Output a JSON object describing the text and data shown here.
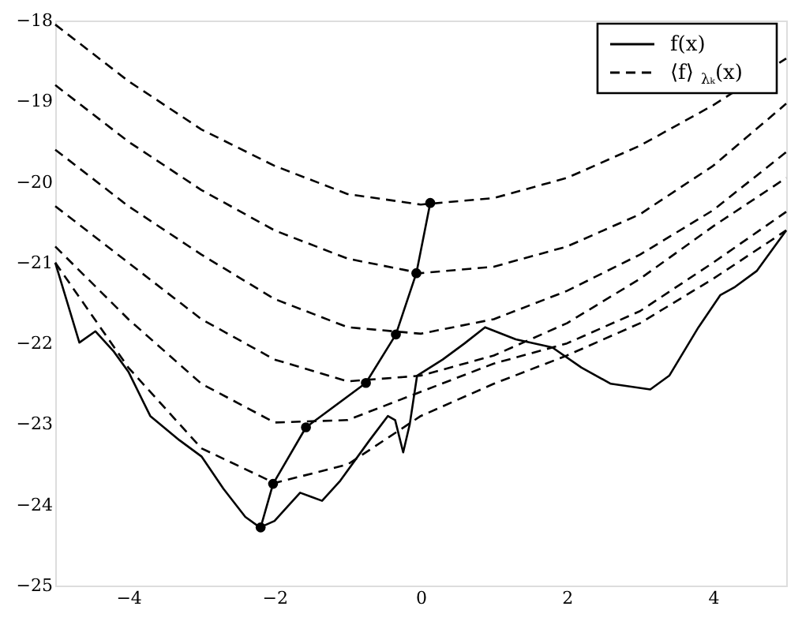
{
  "chart_data": {
    "type": "line",
    "xlim": [
      -5,
      5
    ],
    "ylim": [
      -25,
      -18
    ],
    "xticks": [
      -4,
      -2,
      0,
      2,
      4
    ],
    "yticks": [
      -25,
      -24,
      -23,
      -22,
      -21,
      -20,
      -19,
      -18
    ],
    "grid": false,
    "legend": "top right",
    "series": [
      {
        "name": "f(x)",
        "color": "#000000",
        "line_style": "solid",
        "marker": "none",
        "x": [
          -5.0,
          -4.8,
          -4.67,
          -4.45,
          -4.2,
          -4.0,
          -3.7,
          -3.3,
          -3.0,
          -2.7,
          -2.4,
          -2.2,
          -2.0,
          -1.8,
          -1.65,
          -1.5,
          -1.35,
          -1.1,
          -0.7,
          -0.45,
          -0.35,
          -0.24,
          -0.15,
          -0.05,
          0.3,
          0.6,
          0.88,
          1.3,
          1.8,
          2.2,
          2.6,
          3.14,
          3.4,
          3.8,
          4.1,
          4.3,
          4.6,
          5.0
        ],
        "values": [
          -21.0,
          -21.6,
          -21.99,
          -21.85,
          -22.1,
          -22.35,
          -22.9,
          -23.2,
          -23.4,
          -23.8,
          -24.15,
          -24.28,
          -24.2,
          -24.0,
          -23.85,
          -23.9,
          -23.95,
          -23.7,
          -23.2,
          -22.9,
          -22.95,
          -23.35,
          -23.0,
          -22.4,
          -22.2,
          -22.0,
          -21.8,
          -21.95,
          -22.05,
          -22.3,
          -22.5,
          -22.57,
          -22.4,
          -21.8,
          -21.4,
          -21.3,
          -21.1,
          -20.6
        ]
      },
      {
        "name": "⟨f⟩$_{λₖ}$(x)",
        "color": "#000000",
        "line_style": "dashed",
        "marker": "none",
        "x": [
          -5,
          -4,
          -3,
          -2,
          -1,
          0,
          1,
          2,
          3,
          4,
          5
        ],
        "values": [
          -18.05,
          -18.75,
          -19.35,
          -19.8,
          -20.15,
          -20.28,
          -20.2,
          -19.95,
          -19.55,
          -19.05,
          -18.47
        ]
      },
      {
        "color": "#000000",
        "line_style": "dashed",
        "marker": "none",
        "x": [
          -5,
          -4,
          -3,
          -2,
          -1,
          0,
          1,
          2,
          3,
          4,
          5
        ],
        "values": [
          -18.8,
          -19.5,
          -20.1,
          -20.6,
          -20.95,
          -21.13,
          -21.05,
          -20.8,
          -20.4,
          -19.8,
          -19.03
        ]
      },
      {
        "color": "#000000",
        "line_style": "dashed",
        "marker": "none",
        "x": [
          -5,
          -4,
          -3,
          -2,
          -1,
          0,
          1,
          2,
          3,
          4,
          5
        ],
        "values": [
          -19.6,
          -20.3,
          -20.9,
          -21.45,
          -21.8,
          -21.88,
          -21.7,
          -21.35,
          -20.9,
          -20.35,
          -19.63
        ]
      },
      {
        "color": "#000000",
        "line_style": "dashed",
        "marker": "none",
        "x": [
          -5,
          -4,
          -3,
          -2,
          -1,
          0,
          1,
          2,
          3,
          4,
          5
        ],
        "values": [
          -20.3,
          -21.0,
          -21.7,
          -22.2,
          -22.47,
          -22.4,
          -22.15,
          -21.75,
          -21.2,
          -20.55,
          -19.95
        ]
      },
      {
        "color": "#000000",
        "line_style": "dashed",
        "marker": "none",
        "x": [
          -5,
          -4,
          -3,
          -2,
          -1,
          0,
          1,
          2,
          3,
          4,
          5
        ],
        "values": [
          -20.8,
          -21.7,
          -22.5,
          -22.98,
          -22.95,
          -22.6,
          -22.25,
          -22.0,
          -21.6,
          -21.0,
          -20.37
        ]
      },
      {
        "color": "#000000",
        "line_style": "dashed",
        "marker": "none",
        "x": [
          -5,
          -4,
          -3,
          -2,
          -1,
          0,
          1,
          2,
          3,
          4,
          5
        ],
        "values": [
          -21.0,
          -22.3,
          -23.3,
          -23.73,
          -23.5,
          -22.9,
          -22.5,
          -22.15,
          -21.75,
          -21.2,
          -20.6
        ]
      },
      {
        "color": "#000000",
        "line_style": "solid",
        "marker": "circle",
        "x": [
          -2.19,
          -2.02,
          -1.57,
          -0.75,
          -0.34,
          -0.06,
          0.13
        ],
        "values": [
          -24.28,
          -23.74,
          -23.04,
          -22.49,
          -21.89,
          -21.13,
          -20.26
        ]
      }
    ]
  }
}
